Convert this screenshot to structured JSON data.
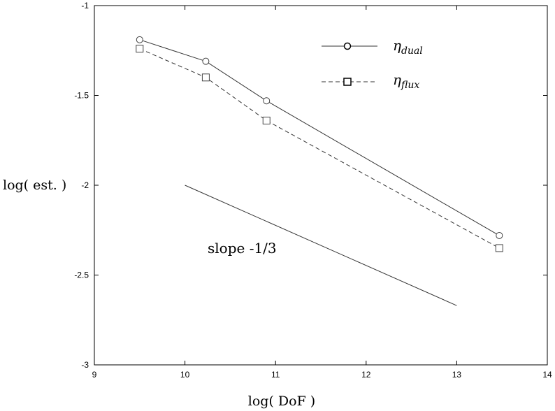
{
  "chart_data": {
    "type": "line",
    "title": "",
    "xlabel": "log( DoF )",
    "ylabel": "log( est. )",
    "xlim": [
      9,
      14
    ],
    "ylim": [
      -3,
      -1
    ],
    "xticks": [
      9,
      10,
      11,
      12,
      13,
      14
    ],
    "yticks": [
      -3,
      -2.5,
      -2,
      -1.5,
      -1
    ],
    "xtick_labels": [
      "9",
      "10",
      "11",
      "12",
      "13",
      "14"
    ],
    "ytick_labels": [
      "-3",
      "-2.5",
      "-2",
      "-1.5",
      "-1"
    ],
    "grid": false,
    "legend_position": "top-right",
    "series": [
      {
        "name_main": "η",
        "name_sub": "dual",
        "line_style": "solid",
        "marker": "circle",
        "color": "#333333",
        "x": [
          9.5,
          10.23,
          10.9,
          13.47
        ],
        "y": [
          -1.19,
          -1.31,
          -1.53,
          -2.28
        ]
      },
      {
        "name_main": "η",
        "name_sub": "flux",
        "line_style": "dashed",
        "marker": "square",
        "color": "#333333",
        "x": [
          9.5,
          10.23,
          10.9,
          13.47
        ],
        "y": [
          -1.24,
          -1.4,
          -1.64,
          -2.35
        ]
      }
    ],
    "reference_line": {
      "label": "slope -1/3",
      "x": [
        10,
        13
      ],
      "y": [
        -2.0,
        -2.67
      ]
    }
  }
}
